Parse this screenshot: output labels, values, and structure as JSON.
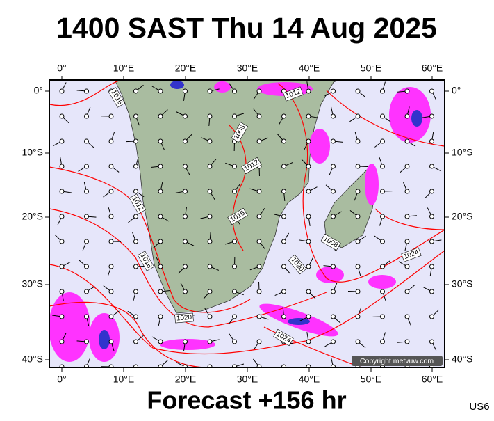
{
  "header": {
    "title": "1400 SAST Thu 14 Aug 2025"
  },
  "map": {
    "lon_labels": [
      "0°",
      "10°E",
      "20°E",
      "30°E",
      "40°E",
      "50°E",
      "60°E"
    ],
    "lat_labels": [
      "0°",
      "10°S",
      "20°S",
      "30°S",
      "40°S"
    ],
    "isobar_labels": [
      "1016",
      "1008",
      "1012",
      "1012",
      "1012",
      "1016",
      "1016",
      "1008",
      "1020",
      "1024",
      "1020",
      "1024"
    ],
    "copyright": "Copyright metvuw.com"
  },
  "footer": {
    "forecast": "Forecast +156 hr",
    "code": "US6"
  }
}
